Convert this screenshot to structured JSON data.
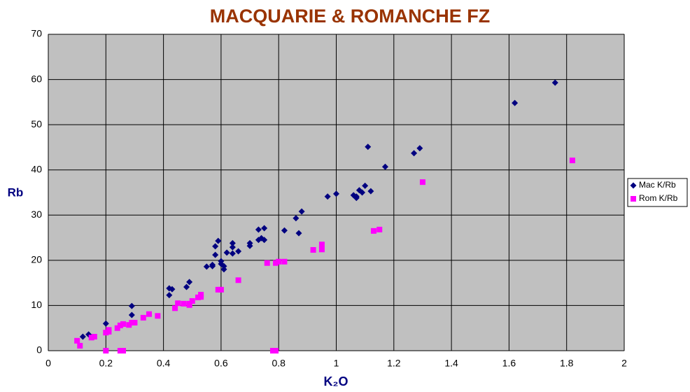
{
  "chart_data": {
    "type": "scatter",
    "title": "MACQUARIE & ROMANCHE FZ",
    "x_label": "K₂O",
    "y_label": "Rb",
    "xlim": [
      0,
      2
    ],
    "ylim": [
      0,
      70
    ],
    "xticks": [
      0,
      0.2,
      0.4,
      0.6,
      0.8,
      1,
      1.2,
      1.4,
      1.6,
      1.8,
      2
    ],
    "yticks": [
      0,
      10,
      20,
      30,
      40,
      50,
      60,
      70
    ],
    "grid": true,
    "legend": "right",
    "series": [
      {
        "name": "Mac K/Rb",
        "color": "#000080",
        "marker": "diamond",
        "x": [
          0.12,
          0.14,
          0.2,
          0.29,
          0.29,
          0.42,
          0.43,
          0.42,
          0.48,
          0.49,
          0.55,
          0.57,
          0.57,
          0.58,
          0.58,
          0.59,
          0.6,
          0.6,
          0.61,
          0.61,
          0.62,
          0.64,
          0.64,
          0.64,
          0.66,
          0.7,
          0.7,
          0.73,
          0.73,
          0.74,
          0.75,
          0.75,
          0.82,
          0.86,
          0.87,
          0.88,
          0.97,
          1,
          1.06,
          1.07,
          1.07,
          1.08,
          1.09,
          1.1,
          1.11,
          1.12,
          1.17,
          1.27,
          1.29,
          1.62,
          1.76
        ],
        "values": [
          3.1,
          3.6,
          6,
          9.9,
          7.9,
          13.8,
          13.6,
          12.3,
          14.1,
          15.2,
          18.6,
          18.7,
          19,
          21.2,
          23.1,
          24.3,
          19.2,
          19.8,
          18.7,
          18,
          21.7,
          21.5,
          23.8,
          22.9,
          22,
          23.8,
          23.2,
          24.5,
          26.8,
          24.9,
          24.5,
          27.1,
          26.6,
          29.3,
          26,
          30.8,
          34.1,
          34.7,
          34.4,
          33.8,
          34.1,
          35.5,
          35,
          36.5,
          45.1,
          35.3,
          40.7,
          43.7,
          44.8,
          54.8,
          59.3
        ]
      },
      {
        "name": "Rom K/Rb",
        "color": "#ff00ff",
        "marker": "square",
        "x": [
          0.1,
          0.11,
          0.15,
          0.16,
          0.2,
          0.21,
          0.21,
          0.2,
          0.24,
          0.25,
          0.26,
          0.25,
          0.26,
          0.28,
          0.29,
          0.3,
          0.33,
          0.35,
          0.38,
          0.44,
          0.45,
          0.47,
          0.49,
          0.49,
          0.5,
          0.52,
          0.53,
          0.53,
          0.59,
          0.6,
          0.66,
          0.76,
          0.79,
          0.8,
          0.82,
          0.78,
          0.79,
          0.92,
          0.95,
          0.95,
          1.13,
          1.15,
          1.3,
          1.82
        ],
        "values": [
          2.2,
          1.1,
          2.9,
          3.1,
          4,
          4.2,
          4.6,
          0,
          5,
          5.6,
          5.9,
          0,
          0,
          5.7,
          6.2,
          6.2,
          7.3,
          8.1,
          7.7,
          9.4,
          10.5,
          10.4,
          10.4,
          10.1,
          11,
          11.8,
          11.9,
          12.4,
          13.5,
          13.5,
          15.6,
          19.4,
          19.4,
          19.7,
          19.7,
          0,
          0,
          22.3,
          23.5,
          22.4,
          26.5,
          26.8,
          37.3,
          42.1
        ]
      }
    ]
  }
}
